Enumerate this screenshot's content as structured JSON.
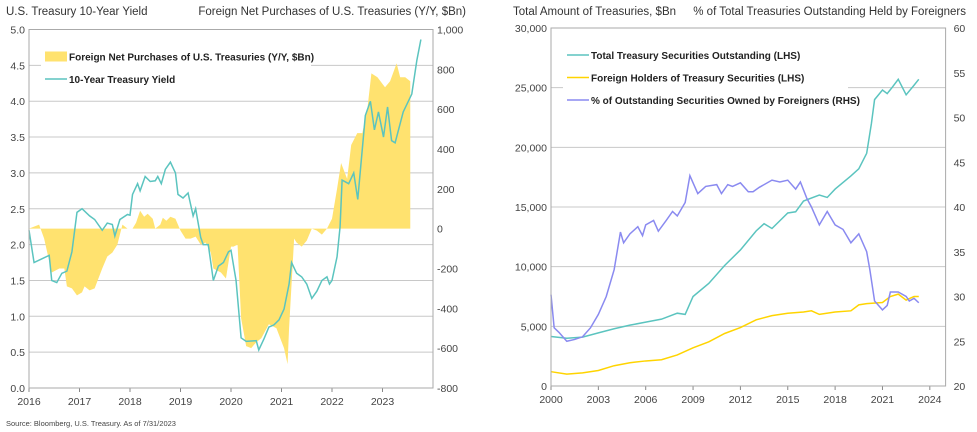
{
  "source": "Source: Bloomberg, U.S. Treasury. As of 7/31/2023",
  "chart_data": [
    {
      "type": "line+area",
      "title_left": "U.S. Treasury 10-Year Yield",
      "title_right": "Foreign Net Purchases of U.S. Treasuries (Y/Y, $Bn)",
      "xlim": [
        2016,
        2024
      ],
      "x_ticks": [
        "2016",
        "2017",
        "2018",
        "2019",
        "2020",
        "2021",
        "2022",
        "2023"
      ],
      "ylim_left": [
        0,
        5
      ],
      "y_ticks_left": [
        "0.0",
        "0.5",
        "1.0",
        "1.5",
        "2.0",
        "2.5",
        "3.0",
        "3.5",
        "4.0",
        "4.5",
        "5.0"
      ],
      "ylim_right": [
        -800,
        1000
      ],
      "y_ticks_right": [
        "-800",
        "-600",
        "-400",
        "-200",
        "0",
        "200",
        "400",
        "600",
        "800",
        "1,000"
      ],
      "grid": true,
      "legend": "top-left",
      "series": [
        {
          "name": "Foreign Net Purchases of U.S. Treasuries (Y/Y, $Bn)",
          "axis": "right",
          "kind": "area",
          "color": "#FFE26F",
          "x": [
            2016.0,
            2016.2,
            2016.3,
            2016.45,
            2016.6,
            2016.7,
            2016.75,
            2016.85,
            2016.95,
            2017.05,
            2017.1,
            2017.2,
            2017.3,
            2017.45,
            2017.55,
            2017.65,
            2017.75,
            2017.85,
            2017.95,
            2018.05,
            2018.12,
            2018.2,
            2018.28,
            2018.35,
            2018.45,
            2018.5,
            2018.6,
            2018.65,
            2018.72,
            2018.8,
            2018.9,
            2019.0,
            2019.1,
            2019.2,
            2019.3,
            2019.4,
            2019.5,
            2019.6,
            2019.65,
            2019.8,
            2019.9,
            2020.0,
            2020.05,
            2020.13,
            2020.2,
            2020.3,
            2020.4,
            2020.5,
            2020.6,
            2020.75,
            2020.9,
            2021.05,
            2021.12,
            2021.15,
            2021.25,
            2021.3,
            2021.4,
            2021.5,
            2021.6,
            2021.7,
            2021.8,
            2021.9,
            2022.0,
            2022.1,
            2022.18,
            2022.3,
            2022.38,
            2022.5,
            2022.6,
            2022.7,
            2022.78,
            2022.9,
            2023.05,
            2023.15,
            2023.28,
            2023.35,
            2023.45,
            2023.55
          ],
          "values": [
            0,
            20,
            -50,
            -220,
            -200,
            -200,
            -290,
            -300,
            -335,
            -320,
            -290,
            -310,
            -300,
            -200,
            -140,
            -120,
            -80,
            20,
            0,
            0,
            30,
            90,
            60,
            75,
            50,
            0,
            20,
            55,
            40,
            60,
            50,
            -10,
            -50,
            -50,
            -40,
            -80,
            -70,
            -120,
            -200,
            -220,
            -250,
            -90,
            -90,
            -80,
            -450,
            -590,
            -600,
            -570,
            -550,
            -480,
            -500,
            -600,
            -680,
            -500,
            -50,
            -70,
            -90,
            -60,
            0,
            -10,
            -30,
            0,
            50,
            200,
            330,
            250,
            420,
            480,
            480,
            600,
            780,
            760,
            710,
            740,
            830,
            760,
            760,
            740
          ]
        },
        {
          "name": "10-Year Treasury Yield",
          "axis": "left",
          "kind": "line",
          "color": "#5BC4BF",
          "x": [
            2016.0,
            2016.1,
            2016.25,
            2016.4,
            2016.45,
            2016.55,
            2016.65,
            2016.75,
            2016.85,
            2016.95,
            2017.05,
            2017.2,
            2017.3,
            2017.45,
            2017.55,
            2017.65,
            2017.7,
            2017.8,
            2017.95,
            2018.0,
            2018.05,
            2018.15,
            2018.2,
            2018.3,
            2018.4,
            2018.5,
            2018.55,
            2018.62,
            2018.7,
            2018.8,
            2018.9,
            2018.95,
            2019.05,
            2019.15,
            2019.25,
            2019.3,
            2019.4,
            2019.45,
            2019.55,
            2019.65,
            2019.75,
            2019.85,
            2019.95,
            2020.0,
            2020.1,
            2020.2,
            2020.3,
            2020.5,
            2020.55,
            2020.65,
            2020.75,
            2020.85,
            2020.95,
            2021.05,
            2021.15,
            2021.2,
            2021.3,
            2021.4,
            2021.5,
            2021.6,
            2021.7,
            2021.8,
            2021.9,
            2021.95,
            2022.0,
            2022.1,
            2022.16,
            2022.2,
            2022.33,
            2022.43,
            2022.51,
            2022.66,
            2022.76,
            2022.84,
            2022.92,
            2023.02,
            2023.1,
            2023.18,
            2023.25,
            2023.41,
            2023.58,
            2023.68,
            2023.76
          ],
          "values": [
            2.2,
            1.75,
            1.8,
            1.85,
            1.5,
            1.47,
            1.6,
            1.63,
            1.9,
            2.45,
            2.5,
            2.4,
            2.35,
            2.2,
            2.3,
            2.28,
            2.12,
            2.35,
            2.42,
            2.41,
            2.7,
            2.85,
            2.75,
            2.95,
            2.88,
            2.89,
            2.95,
            2.85,
            3.05,
            3.15,
            3.0,
            2.7,
            2.65,
            2.72,
            2.4,
            2.5,
            2.1,
            2.0,
            2.0,
            1.5,
            1.7,
            1.75,
            1.9,
            1.92,
            1.5,
            0.7,
            0.65,
            0.66,
            0.53,
            0.68,
            0.85,
            0.88,
            0.95,
            1.1,
            1.45,
            1.75,
            1.6,
            1.55,
            1.45,
            1.25,
            1.35,
            1.5,
            1.55,
            1.45,
            1.5,
            1.83,
            2.25,
            2.9,
            2.85,
            3.0,
            2.63,
            3.8,
            4.0,
            3.6,
            3.85,
            3.5,
            3.92,
            3.45,
            3.42,
            3.85,
            4.1,
            4.57,
            4.86
          ]
        }
      ]
    },
    {
      "type": "line",
      "title_left": "Total Amount of Treasuries, $Bn",
      "title_right": "% of Total Treasuries Outstanding Held by Foreigners",
      "xlim": [
        2000,
        2025
      ],
      "x_ticks": [
        "2000",
        "2003",
        "2006",
        "2009",
        "2012",
        "2015",
        "2018",
        "2021",
        "2024"
      ],
      "ylim_left": [
        0,
        30000
      ],
      "y_ticks_left": [
        "0",
        "5,000",
        "10,000",
        "15,000",
        "20,000",
        "25,000",
        "30,000"
      ],
      "ylim_right": [
        20,
        60
      ],
      "y_ticks_right": [
        "20",
        "25",
        "30",
        "35",
        "40",
        "45",
        "50",
        "55",
        "60"
      ],
      "grid": true,
      "legend": "top-left",
      "series": [
        {
          "name": "Total Treasury Securities Outstanding (LHS)",
          "axis": "left",
          "color": "#5BC4BF",
          "x": [
            2000,
            2001,
            2002,
            2003,
            2004,
            2005,
            2006,
            2007,
            2008,
            2008.5,
            2009,
            2010,
            2011,
            2012,
            2013,
            2013.5,
            2014,
            2015,
            2015.5,
            2016,
            2017,
            2017.5,
            2018,
            2019,
            2019.5,
            2020,
            2020.3,
            2020.5,
            2021,
            2021.3,
            2021.6,
            2022,
            2022.5,
            2023,
            2023.3
          ],
          "values": [
            4150,
            4000,
            4100,
            4450,
            4800,
            5100,
            5350,
            5600,
            6100,
            6000,
            7500,
            8600,
            10100,
            11400,
            13000,
            13600,
            13200,
            14500,
            14600,
            15500,
            16000,
            15800,
            16500,
            17600,
            18200,
            19500,
            22000,
            24000,
            24800,
            24500,
            25000,
            25700,
            24400,
            25200,
            25700
          ]
        },
        {
          "name": "Foreign Holders of Treasury Securities (LHS)",
          "axis": "left",
          "color": "#FFD400",
          "x": [
            2000,
            2001,
            2002,
            2003,
            2004,
            2005,
            2006,
            2007,
            2008,
            2009,
            2010,
            2011,
            2012,
            2013,
            2014,
            2015,
            2016,
            2016.5,
            2017,
            2018,
            2019,
            2019.5,
            2020,
            2021,
            2021.5,
            2022,
            2022.5,
            2023,
            2023.3
          ],
          "values": [
            1200,
            1000,
            1100,
            1300,
            1700,
            1950,
            2100,
            2200,
            2600,
            3200,
            3700,
            4400,
            4900,
            5550,
            5900,
            6100,
            6200,
            6300,
            6000,
            6200,
            6300,
            6800,
            6900,
            7000,
            7500,
            7700,
            7200,
            7500,
            7500
          ]
        },
        {
          "name": "% of Outstanding Securities Owned by Foreigners (RHS)",
          "axis": "right",
          "color": "#8A8AF0",
          "x": [
            2000,
            2000.2,
            2000.5,
            2001,
            2001.5,
            2002,
            2002.5,
            2003,
            2003.5,
            2004,
            2004.4,
            2004.6,
            2005,
            2005.5,
            2005.8,
            2006,
            2006.5,
            2006.8,
            2007.3,
            2007.7,
            2008,
            2008.5,
            2008.8,
            2009.3,
            2009.8,
            2010.5,
            2010.8,
            2011.2,
            2011.5,
            2012,
            2012.5,
            2012.8,
            2013.2,
            2014,
            2014.5,
            2015,
            2015.5,
            2015.8,
            2016.2,
            2016.5,
            2017,
            2017.5,
            2018,
            2018.5,
            2019,
            2019.5,
            2020,
            2020.2,
            2020.5,
            2021,
            2021.3,
            2021.5,
            2022,
            2022.5,
            2022.7,
            2023,
            2023.3
          ],
          "values": [
            30.2,
            26.5,
            26,
            25,
            25.2,
            25.5,
            26.5,
            28,
            30,
            33,
            37.2,
            36,
            37,
            37.8,
            36.8,
            38,
            38.5,
            37.3,
            38.5,
            39.5,
            39,
            40.5,
            43.5,
            41.5,
            42.3,
            42.5,
            41.5,
            42.5,
            42.3,
            42.7,
            41.7,
            41.7,
            42.2,
            43,
            42.8,
            43,
            42,
            42.8,
            41,
            40,
            38,
            39.5,
            38,
            37.5,
            36,
            37,
            35,
            33,
            29.5,
            28.5,
            29,
            30.5,
            30.5,
            30,
            29.5,
            29.8,
            29.3
          ]
        }
      ]
    }
  ]
}
